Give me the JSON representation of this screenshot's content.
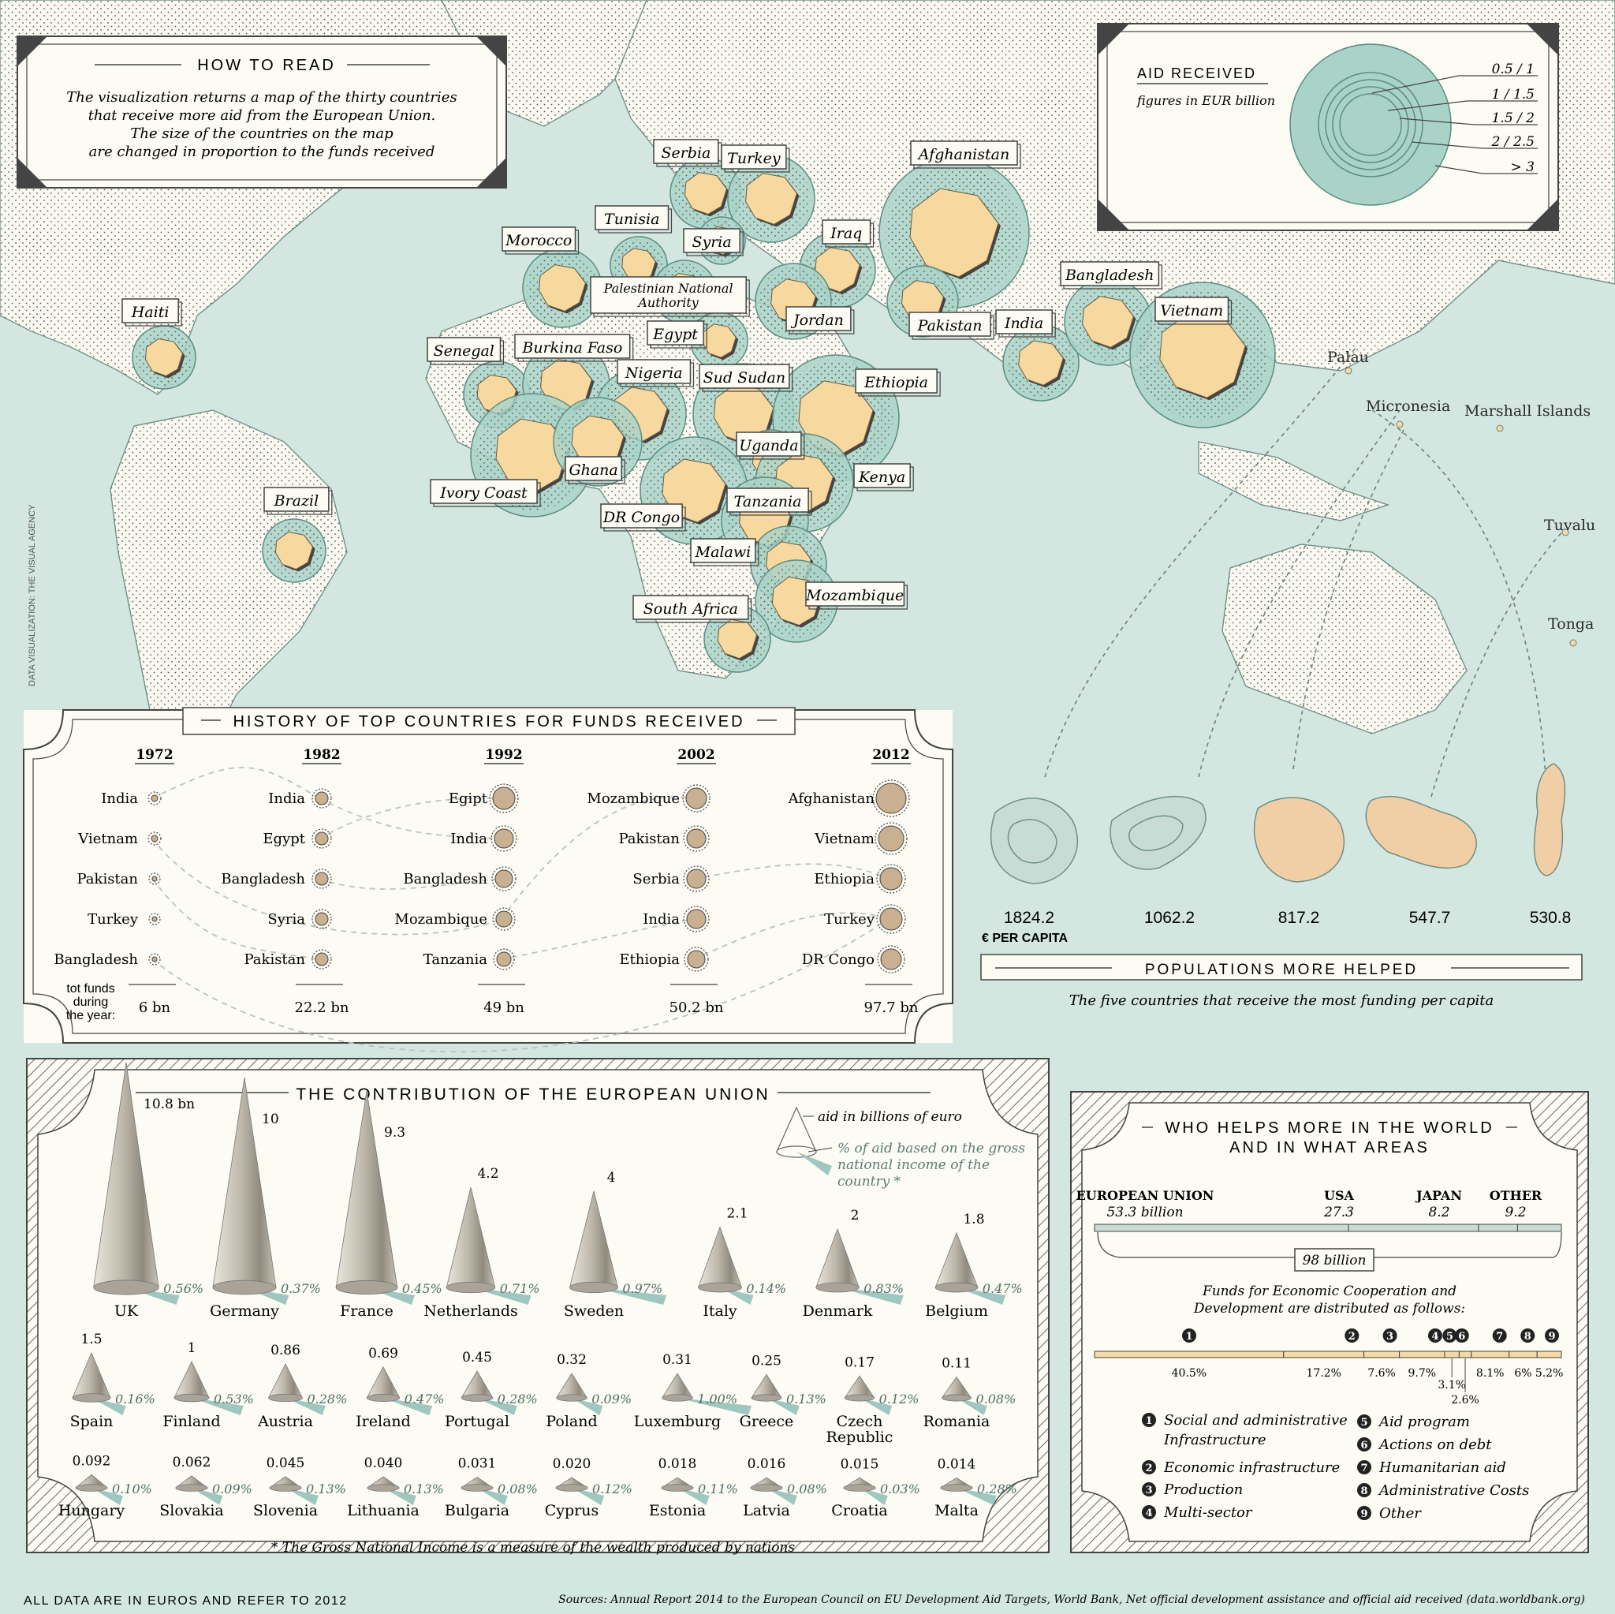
{
  "colors": {
    "sea": "#d3e6e0",
    "land": "#f9f8f1",
    "country": "#f7d9a0",
    "circle": "#a9d3c8",
    "panel": "#fcfbf4",
    "ink": "#2a2a2a",
    "cone_shadow": "#9fc7bf",
    "funds_bar": "#f2d9a6",
    "bubble": "#c9b091"
  },
  "how_to_read": {
    "title": "HOW TO READ",
    "lines": [
      "The visualization returns a map of the thirty countries",
      "that receive more aid from the European Union.",
      "The size of the countries on the map",
      "are changed in proportion to the funds received"
    ]
  },
  "aid_legend": {
    "title": "AID RECEIVED",
    "subtitle": "figures in EUR billion",
    "classes": [
      "0.5 / 1",
      "1 / 1.5",
      "1.5 / 2",
      "2 / 2.5",
      "> 3"
    ]
  },
  "map_countries": [
    {
      "name": "Haiti"
    },
    {
      "name": "Brazil"
    },
    {
      "name": "Morocco"
    },
    {
      "name": "Tunisia"
    },
    {
      "name": "Serbia"
    },
    {
      "name": "Turkey"
    },
    {
      "name": "Syria"
    },
    {
      "name": "Iraq"
    },
    {
      "name": "Afghanistan"
    },
    {
      "name": "Palestinian National Authority"
    },
    {
      "name": "Egypt"
    },
    {
      "name": "Jordan"
    },
    {
      "name": "Pakistan"
    },
    {
      "name": "India"
    },
    {
      "name": "Bangladesh"
    },
    {
      "name": "Vietnam"
    },
    {
      "name": "Senegal"
    },
    {
      "name": "Burkina Faso"
    },
    {
      "name": "Nigeria"
    },
    {
      "name": "Sud Sudan"
    },
    {
      "name": "Ethiopia"
    },
    {
      "name": "Ivory Coast"
    },
    {
      "name": "Ghana"
    },
    {
      "name": "Uganda"
    },
    {
      "name": "Kenya"
    },
    {
      "name": "DR Congo"
    },
    {
      "name": "Tanzania"
    },
    {
      "name": "Malawi"
    },
    {
      "name": "Mozambique"
    },
    {
      "name": "South Africa"
    }
  ],
  "pacific_labels": [
    "Palau",
    "Micronesia",
    "Marshall Islands",
    "Tuvalu",
    "Tonga"
  ],
  "credit": "DATA VISUALIZATION: THE VISUAL AGENCY",
  "history": {
    "title": "HISTORY OF TOP COUNTRIES FOR FUNDS RECEIVED",
    "tot_label": [
      "tot funds",
      "during",
      "the year:"
    ],
    "years": [
      {
        "year": "1972",
        "countries": [
          "India",
          "Vietnam",
          "Pakistan",
          "Turkey",
          "Bangladesh"
        ],
        "total": "6 bn"
      },
      {
        "year": "1982",
        "countries": [
          "India",
          "Egypt",
          "Bangladesh",
          "Syria",
          "Pakistan"
        ],
        "total": "22.2 bn"
      },
      {
        "year": "1992",
        "countries": [
          "Egipt",
          "India",
          "Bangladesh",
          "Mozambique",
          "Tanzania"
        ],
        "total": "49 bn"
      },
      {
        "year": "2002",
        "countries": [
          "Mozambique",
          "Pakistan",
          "Serbia",
          "India",
          "Ethiopia"
        ],
        "total": "50.2 bn"
      },
      {
        "year": "2012",
        "countries": [
          "Afghanistan",
          "Vietnam",
          "Ethiopia",
          "Turkey",
          "DR Congo"
        ],
        "total": "97.7 bn"
      }
    ]
  },
  "per_capita": {
    "values": [
      "1824.2",
      "1062.2",
      "817.2",
      "547.7",
      "530.8"
    ],
    "unit": "€ PER CAPITA",
    "title": "POPULATIONS MORE HELPED",
    "subtitle": "The five countries that receive the most funding per capita"
  },
  "eu_contribution": {
    "title": "THE CONTRIBUTION OF THE EUROPEAN UNION",
    "legend_aid": "aid in billions of euro",
    "legend_gni": [
      "% of aid based on the gross",
      "national income of the",
      "country *"
    ],
    "footnote": "* The Gross National Income is a measure of the wealth produced by nations"
  },
  "chart_data": [
    {
      "type": "bar",
      "title": "THE CONTRIBUTION OF THE EUROPEAN UNION",
      "series_names": [
        "aid in billions of euro",
        "% of aid based on the gross national income of the country *"
      ],
      "countries": [
        {
          "name": "UK",
          "aid": 10.8,
          "aid_label": "10.8 bn",
          "gni": "0.56%"
        },
        {
          "name": "Germany",
          "aid": 10,
          "aid_label": "10",
          "gni": "0.37%"
        },
        {
          "name": "France",
          "aid": 9.3,
          "aid_label": "9.3",
          "gni": "0.45%"
        },
        {
          "name": "Netherlands",
          "aid": 4.2,
          "aid_label": "4.2",
          "gni": "0.71%"
        },
        {
          "name": "Sweden",
          "aid": 4,
          "aid_label": "4",
          "gni": "0.97%"
        },
        {
          "name": "Italy",
          "aid": 2.1,
          "aid_label": "2.1",
          "gni": "0.14%"
        },
        {
          "name": "Denmark",
          "aid": 2,
          "aid_label": "2",
          "gni": "0.83%"
        },
        {
          "name": "Belgium",
          "aid": 1.8,
          "aid_label": "1.8",
          "gni": "0.47%"
        },
        {
          "name": "Spain",
          "aid": 1.5,
          "aid_label": "1.5",
          "gni": "0.16%"
        },
        {
          "name": "Finland",
          "aid": 1,
          "aid_label": "1",
          "gni": "0.53%"
        },
        {
          "name": "Austria",
          "aid": 0.86,
          "aid_label": "0.86",
          "gni": "0.28%"
        },
        {
          "name": "Ireland",
          "aid": 0.69,
          "aid_label": "0.69",
          "gni": "0.47%"
        },
        {
          "name": "Portugal",
          "aid": 0.45,
          "aid_label": "0.45",
          "gni": "0.28%"
        },
        {
          "name": "Poland",
          "aid": 0.32,
          "aid_label": "0.32",
          "gni": "0.09%"
        },
        {
          "name": "Luxemburg",
          "aid": 0.31,
          "aid_label": "0.31",
          "gni": "1.00%"
        },
        {
          "name": "Greece",
          "aid": 0.25,
          "aid_label": "0.25",
          "gni": "0.13%"
        },
        {
          "name": "Czech Republic",
          "aid": 0.17,
          "aid_label": "0.17",
          "gni": "0.12%"
        },
        {
          "name": "Romania",
          "aid": 0.11,
          "aid_label": "0.11",
          "gni": "0.08%"
        },
        {
          "name": "Hungary",
          "aid": 0.092,
          "aid_label": "0.092",
          "gni": "0.10%"
        },
        {
          "name": "Slovakia",
          "aid": 0.062,
          "aid_label": "0.062",
          "gni": "0.09%"
        },
        {
          "name": "Slovenia",
          "aid": 0.045,
          "aid_label": "0.045",
          "gni": "0.13%"
        },
        {
          "name": "Lithuania",
          "aid": 0.04,
          "aid_label": "0.040",
          "gni": "0.13%"
        },
        {
          "name": "Bulgaria",
          "aid": 0.031,
          "aid_label": "0.031",
          "gni": "0.08%"
        },
        {
          "name": "Cyprus",
          "aid": 0.02,
          "aid_label": "0.020",
          "gni": "0.12%"
        },
        {
          "name": "Estonia",
          "aid": 0.018,
          "aid_label": "0.018",
          "gni": "0.11%"
        },
        {
          "name": "Latvia",
          "aid": 0.016,
          "aid_label": "0.016",
          "gni": "0.08%"
        },
        {
          "name": "Croatia",
          "aid": 0.015,
          "aid_label": "0.015",
          "gni": "0.03%"
        },
        {
          "name": "Malta",
          "aid": 0.014,
          "aid_label": "0.014",
          "gni": "0.28%"
        }
      ]
    },
    {
      "type": "bar",
      "title": "WHO HELPS MORE IN THE WORLD AND IN WHAT AREAS",
      "categories": [
        "EUROPEAN UNION",
        "USA",
        "JAPAN",
        "OTHER"
      ],
      "values": [
        53.3,
        27.3,
        8.2,
        9.2
      ],
      "value_labels": [
        "53.3 billion",
        "27.3",
        "8.2",
        "9.2"
      ],
      "total": "98 billion"
    },
    {
      "type": "bar",
      "title": "Funds for Economic Cooperation and Development are distributed as follows:",
      "categories": [
        "1",
        "2",
        "3",
        "4",
        "5",
        "6",
        "7",
        "8",
        "9"
      ],
      "values": [
        40.5,
        17.2,
        7.6,
        9.7,
        3.1,
        2.6,
        8.1,
        6,
        5.2
      ],
      "value_labels": [
        "40.5%",
        "17.2%",
        "7.6%",
        "9.7%",
        "3.1%",
        "2.6%",
        "8.1%",
        "6%",
        "5.2%"
      ]
    }
  ],
  "who_helps": {
    "title_lines": [
      "WHO HELPS MORE IN THE WORLD",
      "AND IN WHAT AREAS"
    ],
    "funds_lines": [
      "Funds for Economic Cooperation and",
      "Development are distributed as follows:"
    ],
    "legend": [
      {
        "num": "1",
        "lines": [
          "Social and administrative",
          "Infrastructure"
        ]
      },
      {
        "num": "2",
        "lines": [
          "Economic infrastructure"
        ]
      },
      {
        "num": "3",
        "lines": [
          "Production"
        ]
      },
      {
        "num": "4",
        "lines": [
          "Multi-sector"
        ]
      },
      {
        "num": "5",
        "lines": [
          "Aid program"
        ]
      },
      {
        "num": "6",
        "lines": [
          "Actions on debt"
        ]
      },
      {
        "num": "7",
        "lines": [
          "Humanitarian aid"
        ]
      },
      {
        "num": "8",
        "lines": [
          "Administrative Costs"
        ]
      },
      {
        "num": "9",
        "lines": [
          "Other"
        ]
      }
    ]
  },
  "footer": {
    "left": "ALL DATA ARE IN EUROS AND REFER TO 2012",
    "sources": "Sources: Annual Report 2014 to the European Council on EU Development Aid Targets, World Bank, Net official development assistance and official aid received (data.worldbank.org)"
  }
}
